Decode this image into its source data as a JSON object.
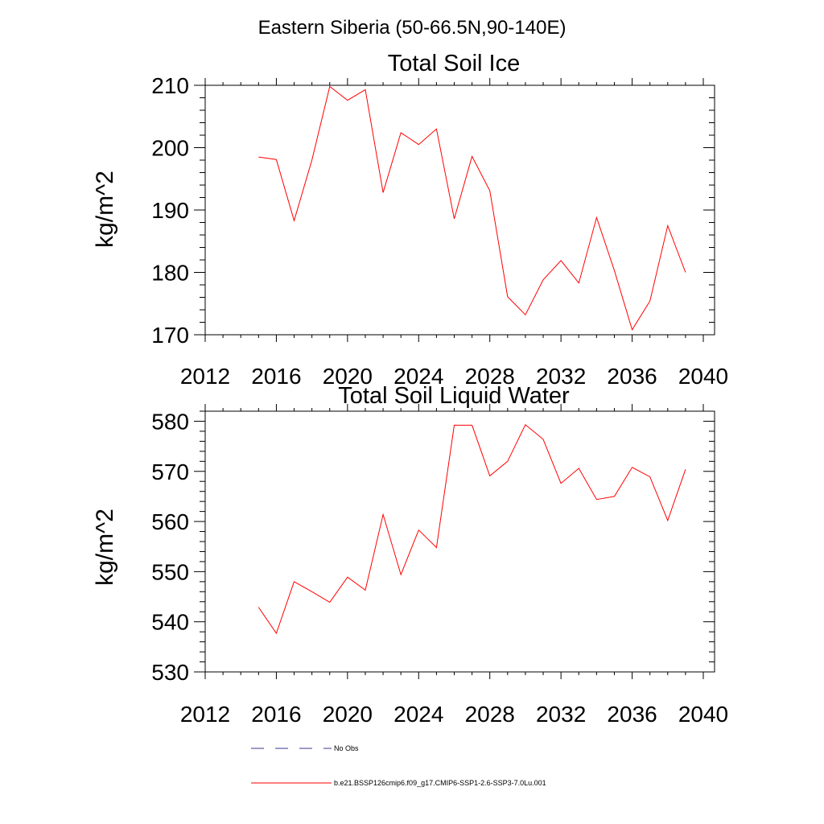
{
  "figure": {
    "title": "Eastern Siberia (50-66.5N,90-140E)"
  },
  "legend": [
    {
      "label": "No Obs",
      "color": "#3a3a8c",
      "style": "dashed"
    },
    {
      "label": "b.e21.BSSP126cmip6.f09_g17.CMIP6-SSP1-2.6-SSP3-7.0Lu.001",
      "color": "#ff0000",
      "style": "solid"
    }
  ],
  "chart_data": [
    {
      "type": "line",
      "title": "Total Soil Ice",
      "ylabel": "kg/m^2",
      "xlabel": "",
      "xlim": [
        2012,
        2040
      ],
      "ylim": [
        170,
        210
      ],
      "xticks": [
        2012,
        2016,
        2020,
        2024,
        2028,
        2032,
        2036,
        2040
      ],
      "yticks": [
        170,
        180,
        190,
        200,
        210
      ],
      "series": [
        {
          "color": "#ff0000",
          "x": [
            2015,
            2016,
            2017,
            2018,
            2019,
            2020,
            2021,
            2022,
            2023,
            2024,
            2025,
            2026,
            2027,
            2028,
            2029,
            2030,
            2031,
            2032,
            2033,
            2034,
            2035,
            2036,
            2037,
            2038,
            2039
          ],
          "values": [
            198.5,
            198.1,
            188.3,
            198.0,
            209.8,
            207.6,
            209.3,
            192.8,
            202.4,
            200.5,
            203.0,
            188.6,
            198.6,
            193.1,
            176.1,
            173.2,
            178.8,
            181.9,
            178.3,
            188.8,
            180.3,
            170.8,
            175.4,
            187.5,
            180.0
          ]
        }
      ]
    },
    {
      "type": "line",
      "title": "Total Soil Liquid Water",
      "ylabel": "kg/m^2",
      "xlabel": "",
      "xlim": [
        2012,
        2040
      ],
      "ylim": [
        530,
        582
      ],
      "xticks": [
        2012,
        2016,
        2020,
        2024,
        2028,
        2032,
        2036,
        2040
      ],
      "yticks": [
        530,
        540,
        550,
        560,
        570,
        580
      ],
      "series": [
        {
          "color": "#ff0000",
          "x": [
            2015,
            2016,
            2017,
            2018,
            2019,
            2020,
            2021,
            2022,
            2023,
            2024,
            2025,
            2026,
            2027,
            2028,
            2029,
            2030,
            2031,
            2032,
            2033,
            2034,
            2035,
            2036,
            2037,
            2038,
            2039
          ],
          "values": [
            542.9,
            537.7,
            548.0,
            546.0,
            543.9,
            548.9,
            546.3,
            561.4,
            549.4,
            558.3,
            554.8,
            579.2,
            579.2,
            569.1,
            572.0,
            579.3,
            576.4,
            567.6,
            570.6,
            564.4,
            565.0,
            570.8,
            568.9,
            560.2,
            570.4
          ]
        }
      ]
    }
  ]
}
